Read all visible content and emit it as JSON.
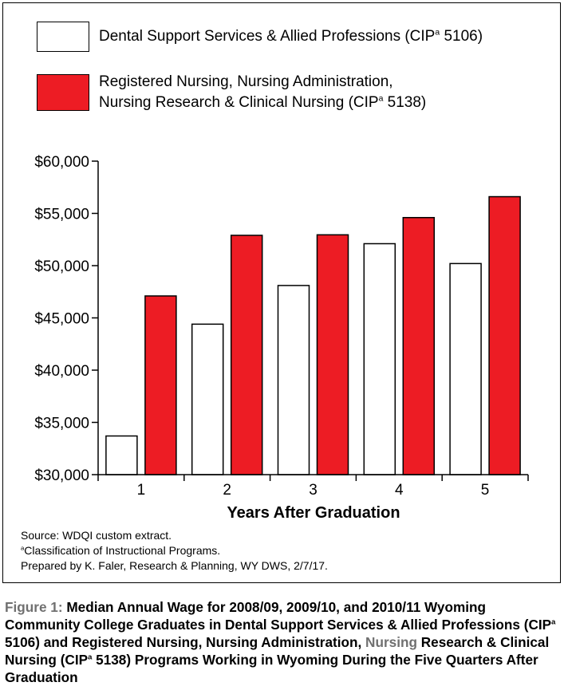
{
  "legend": [
    {
      "label": "Dental Support Services & Allied Professions (CIP",
      "sup": "a",
      "tail": " 5106)",
      "color": "#ffffff"
    },
    {
      "label_line1": "Registered Nursing, Nursing Administration,",
      "label": "Nursing Research & Clinical Nursing (CIP",
      "sup": "a",
      "tail": " 5138)",
      "color": "#ed1c24"
    }
  ],
  "notes": {
    "source": "Source: WDQI custom extract.",
    "footnote_sup": "a",
    "footnote": "Classification of Instructional Programs.",
    "prepared": "Prepared by K. Faler, Research & Planning, WY DWS, 2/7/17."
  },
  "caption": {
    "figure_label": "Figure 1:",
    "part1": " Median Annual Wage for 2008/09, 2009/10, and  2010/11 Wyoming Community College Graduates in Dental Support Services & Allied Professions (CIP",
    "sup1": "a",
    "part2": " 5106) and Registered Nursing, Nursing Administration, ",
    "dim_word": "Nursing",
    "part3": " Research & Clinical Nursing (CIP",
    "sup2": "a",
    "part4": " 5138) Programs Working in Wyoming During the Five Quarters After Graduation"
  },
  "chart_data": {
    "type": "bar",
    "categories": [
      "1",
      "2",
      "3",
      "4",
      "5"
    ],
    "series": [
      {
        "name": "Dental Support Services & Allied Professions (CIPa 5106)",
        "color": "#ffffff",
        "values": [
          33700,
          44400,
          48100,
          52100,
          50200
        ]
      },
      {
        "name": "Registered Nursing, Nursing Administration, Nursing Research & Clinical Nursing (CIPa 5138)",
        "color": "#ed1c24",
        "values": [
          47100,
          52900,
          52950,
          54600,
          56600
        ]
      }
    ],
    "xlabel": "Years After Graduation",
    "ylabel": "",
    "ylim": [
      30000,
      60000
    ],
    "yticks": [
      30000,
      35000,
      40000,
      45000,
      50000,
      55000,
      60000
    ],
    "ytick_labels": [
      "$30,000",
      "$35,000",
      "$40,000",
      "$45,000",
      "$50,000",
      "$55,000",
      "$60,000"
    ],
    "grid": false,
    "legend_position": "top"
  }
}
